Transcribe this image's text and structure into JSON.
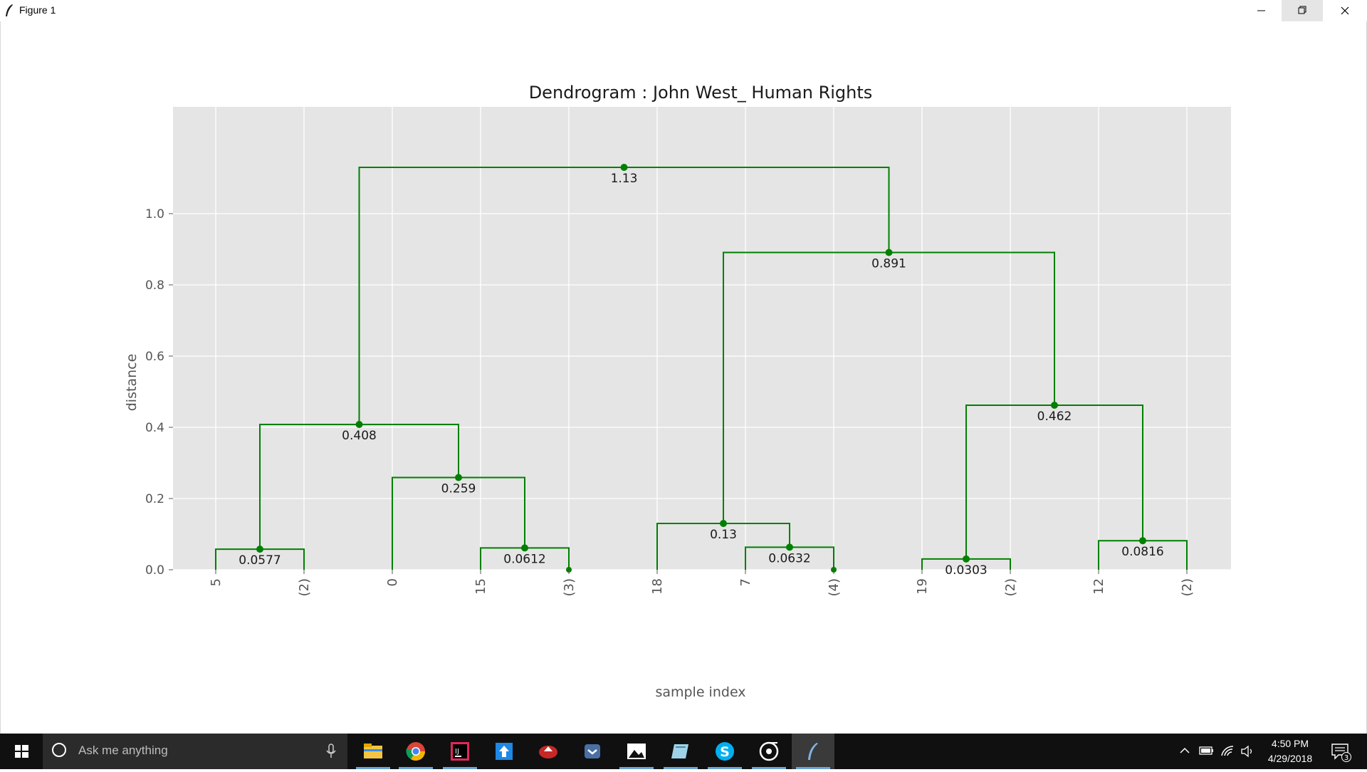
{
  "window": {
    "title": "Figure 1"
  },
  "chart_data": {
    "type": "dendrogram",
    "title": "Dendrogram : John West_ Human Rights",
    "xlabel": "sample index",
    "ylabel": "distance",
    "ylim": [
      0.0,
      1.18
    ],
    "yticks": [
      0.0,
      0.2,
      0.4,
      0.6,
      0.8,
      1.0
    ],
    "ytick_labels": [
      "0.0",
      "0.2",
      "0.4",
      "0.6",
      "0.8",
      "1.0"
    ],
    "leaf_labels": [
      "5",
      "(2)",
      "0",
      "15",
      "(3)",
      "18",
      "7",
      "(4)",
      "19",
      "(2)",
      "12",
      "(2)"
    ],
    "link_color": "#008000",
    "background": "#e5e5e5",
    "grid": true,
    "links": [
      {
        "left": {
          "leaf": 0
        },
        "right": {
          "leaf": 1
        },
        "height": 0.0577,
        "label": "0.0577"
      },
      {
        "left": {
          "leaf": 3
        },
        "right": {
          "leaf": 4
        },
        "height": 0.0612,
        "label": "0.0612"
      },
      {
        "left": {
          "leaf": 2
        },
        "right": {
          "link": 1
        },
        "height": 0.259,
        "label": "0.259"
      },
      {
        "left": {
          "link": 0
        },
        "right": {
          "link": 2
        },
        "height": 0.408,
        "label": "0.408"
      },
      {
        "left": {
          "leaf": 6
        },
        "right": {
          "leaf": 7
        },
        "height": 0.0632,
        "label": "0.0632"
      },
      {
        "left": {
          "leaf": 5
        },
        "right": {
          "link": 4
        },
        "height": 0.13,
        "label": "0.13"
      },
      {
        "left": {
          "leaf": 8
        },
        "right": {
          "leaf": 9
        },
        "height": 0.0303,
        "label": "0.0303"
      },
      {
        "left": {
          "leaf": 10
        },
        "right": {
          "leaf": 11
        },
        "height": 0.0816,
        "label": "0.0816"
      },
      {
        "left": {
          "link": 6
        },
        "right": {
          "link": 7
        },
        "height": 0.462,
        "label": "0.462"
      },
      {
        "left": {
          "link": 5
        },
        "right": {
          "link": 8
        },
        "height": 0.891,
        "label": "0.891"
      },
      {
        "left": {
          "link": 3
        },
        "right": {
          "link": 9
        },
        "height": 1.13,
        "label": "1.13"
      }
    ],
    "leaf_dots": [
      4,
      7
    ]
  },
  "taskbar": {
    "search_placeholder": "Ask me anything",
    "apps": [
      "file-explorer-icon",
      "chrome-icon",
      "intellij-icon",
      "upload-app-icon",
      "red-app-icon",
      "pocket-icon",
      "photos-icon",
      "notes-app-icon",
      "skype-icon",
      "groove-icon",
      "python-feather-icon"
    ],
    "clock_time": "4:50 PM",
    "clock_date": "4/29/2018",
    "notification_count": "3"
  }
}
